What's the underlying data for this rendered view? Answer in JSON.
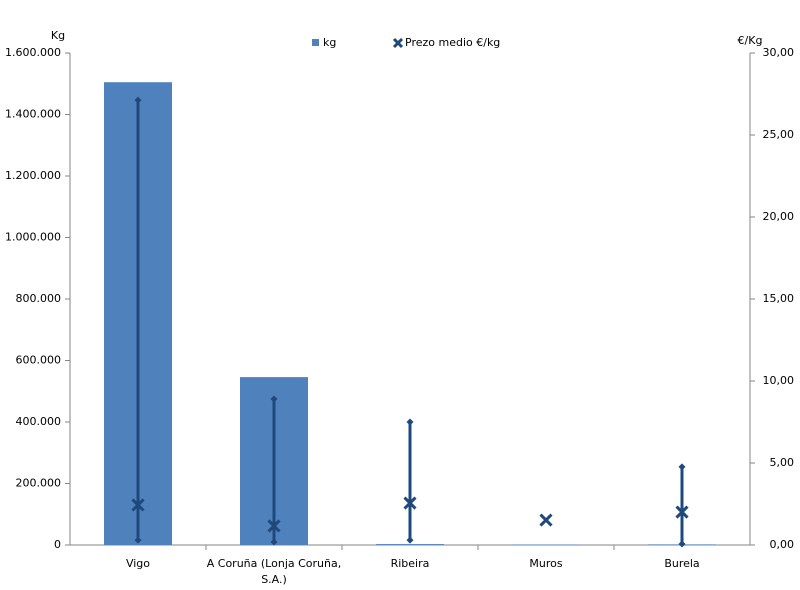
{
  "chart_data": {
    "type": "bar-range",
    "y_label": "Kg",
    "y2_label": "€/Kg",
    "categories": [
      "Vigo",
      "A Coruña (Lonja Coruña, S.A.)",
      "Ribeira",
      "Muros",
      "Burela"
    ],
    "series": [
      {
        "name": "kg",
        "color": "#4f81bd",
        "values": [
          1505000,
          546000,
          3000,
          1500,
          2000
        ]
      },
      {
        "name": "Prezo medio €/kg",
        "color": "#1f497d",
        "axis": "y2",
        "values": [
          2.44,
          1.16,
          2.56,
          1.52,
          2.01
        ],
        "high": [
          27.13,
          8.9,
          7.5,
          null,
          4.76
        ],
        "low": [
          0.3,
          0.18,
          0.3,
          null,
          0.06
        ]
      }
    ],
    "ylim": [
      0,
      1600000
    ],
    "yticks": [
      0,
      {
        "value": 200000,
        "label": "200.000"
      },
      {
        "value": 400000,
        "label": "400.000"
      },
      {
        "value": 600000,
        "label": "600.000"
      },
      {
        "value": 800000,
        "label": "800.000"
      },
      {
        "value": 1000000,
        "label": "1.000.000"
      },
      {
        "value": 1200000,
        "label": "1.200.000"
      },
      {
        "value": 1400000,
        "label": "1.400.000"
      },
      {
        "value": 1600000,
        "label": "1.600.000"
      }
    ],
    "y2lim": [
      0,
      30
    ],
    "y2ticks": [
      {
        "value": 0,
        "label": "0,00"
      },
      {
        "value": 5,
        "label": "5,00"
      },
      {
        "value": 10,
        "label": "10,00"
      },
      {
        "value": 15,
        "label": "15,00"
      },
      {
        "value": 20,
        "label": "20,00"
      },
      {
        "value": 25,
        "label": "25,00"
      },
      {
        "value": 30,
        "label": "30,00"
      }
    ],
    "grid": false,
    "legend": "top"
  }
}
